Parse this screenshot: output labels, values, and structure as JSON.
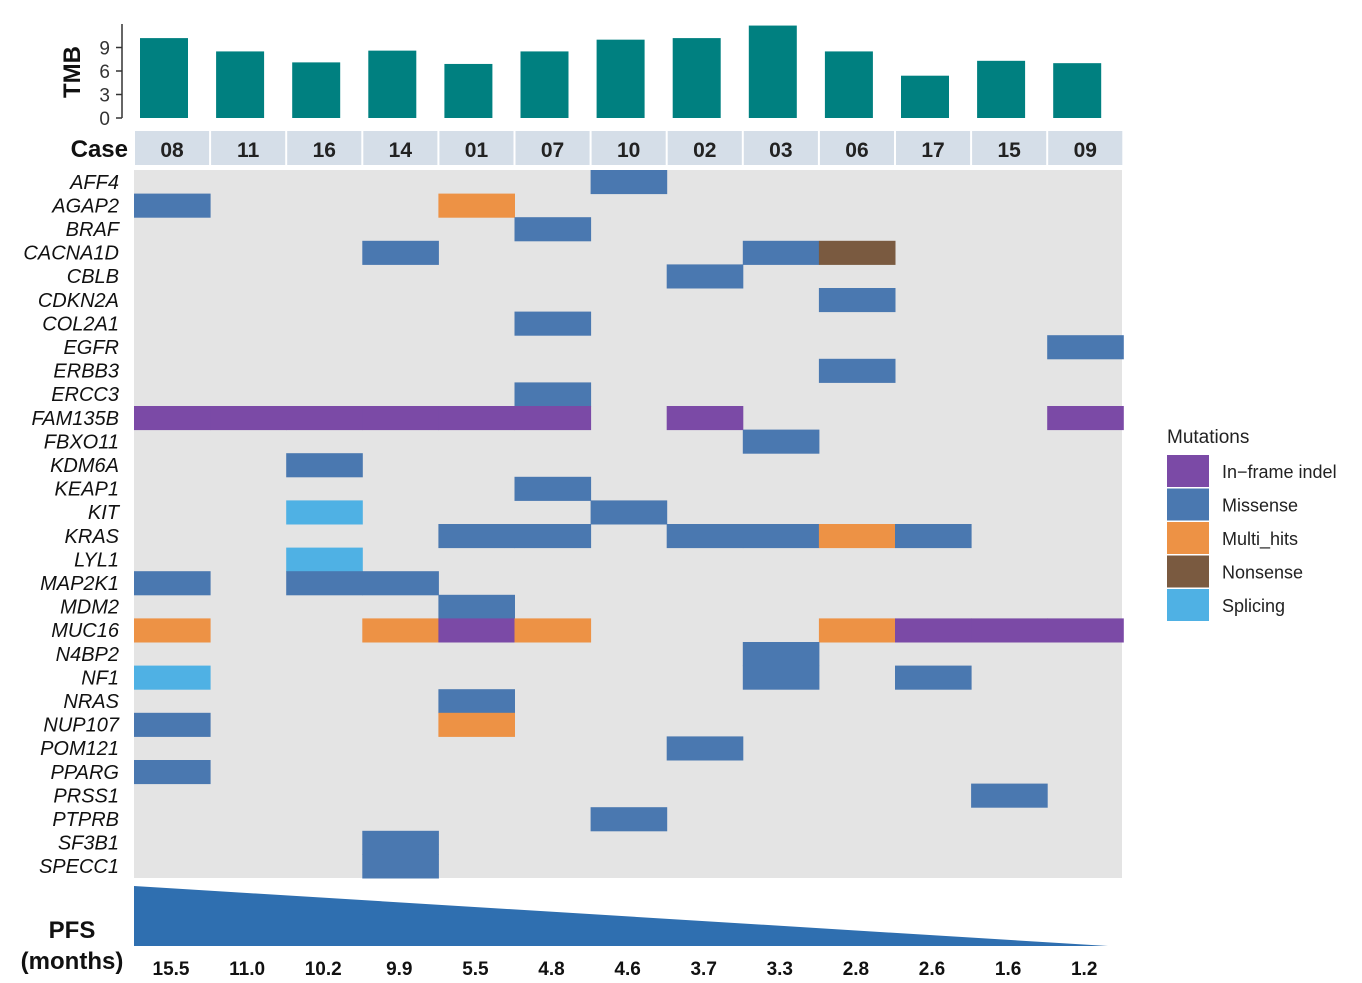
{
  "chart_data": {
    "type": "heatmap",
    "tmb": {
      "ylabel": "TMB",
      "ylim": [
        0,
        12
      ],
      "ticks": [
        0,
        3,
        6,
        9
      ],
      "values": [
        10.2,
        8.5,
        7.1,
        8.6,
        6.9,
        8.5,
        10.0,
        10.2,
        11.8,
        8.5,
        5.4,
        7.3,
        7.0
      ],
      "color": "#008080"
    },
    "case_label": "Case",
    "cases": [
      "08",
      "11",
      "16",
      "14",
      "01",
      "07",
      "10",
      "02",
      "03",
      "06",
      "17",
      "15",
      "09"
    ],
    "genes": [
      "AFF4",
      "AGAP2",
      "BRAF",
      "CACNA1D",
      "CBLB",
      "CDKN2A",
      "COL2A1",
      "EGFR",
      "ERBB3",
      "ERCC3",
      "FAM135B",
      "FBXO11",
      "KDM6A",
      "KEAP1",
      "KIT",
      "KRAS",
      "LYL1",
      "MAP2K1",
      "MDM2",
      "MUC16",
      "N4BP2",
      "NF1",
      "NRAS",
      "NUP107",
      "POM121",
      "PPARG",
      "PRSS1",
      "PTPRB",
      "SF3B1",
      "SPECC1"
    ],
    "mutations": [
      {
        "gene": "AFF4",
        "case": "10",
        "type": "Missense"
      },
      {
        "gene": "AGAP2",
        "case": "08",
        "type": "Missense"
      },
      {
        "gene": "AGAP2",
        "case": "01",
        "type": "Multi_hits"
      },
      {
        "gene": "BRAF",
        "case": "07",
        "type": "Missense"
      },
      {
        "gene": "CACNA1D",
        "case": "14",
        "type": "Missense"
      },
      {
        "gene": "CACNA1D",
        "case": "03",
        "type": "Missense"
      },
      {
        "gene": "CACNA1D",
        "case": "06",
        "type": "Nonsense"
      },
      {
        "gene": "CBLB",
        "case": "02",
        "type": "Missense"
      },
      {
        "gene": "CDKN2A",
        "case": "06",
        "type": "Missense"
      },
      {
        "gene": "COL2A1",
        "case": "07",
        "type": "Missense"
      },
      {
        "gene": "EGFR",
        "case": "09",
        "type": "Missense"
      },
      {
        "gene": "ERBB3",
        "case": "06",
        "type": "Missense"
      },
      {
        "gene": "ERCC3",
        "case": "07",
        "type": "Missense"
      },
      {
        "gene": "FAM135B",
        "case": "08",
        "type": "In-frame indel"
      },
      {
        "gene": "FAM135B",
        "case": "11",
        "type": "In-frame indel"
      },
      {
        "gene": "FAM135B",
        "case": "16",
        "type": "In-frame indel"
      },
      {
        "gene": "FAM135B",
        "case": "14",
        "type": "In-frame indel"
      },
      {
        "gene": "FAM135B",
        "case": "01",
        "type": "In-frame indel"
      },
      {
        "gene": "FAM135B",
        "case": "07",
        "type": "In-frame indel"
      },
      {
        "gene": "FAM135B",
        "case": "02",
        "type": "In-frame indel"
      },
      {
        "gene": "FAM135B",
        "case": "09",
        "type": "In-frame indel"
      },
      {
        "gene": "FBXO11",
        "case": "03",
        "type": "Missense"
      },
      {
        "gene": "KDM6A",
        "case": "16",
        "type": "Missense"
      },
      {
        "gene": "KEAP1",
        "case": "07",
        "type": "Missense"
      },
      {
        "gene": "KIT",
        "case": "16",
        "type": "Splicing"
      },
      {
        "gene": "KIT",
        "case": "10",
        "type": "Missense"
      },
      {
        "gene": "KRAS",
        "case": "01",
        "type": "Missense"
      },
      {
        "gene": "KRAS",
        "case": "07",
        "type": "Missense"
      },
      {
        "gene": "KRAS",
        "case": "02",
        "type": "Missense"
      },
      {
        "gene": "KRAS",
        "case": "03",
        "type": "Missense"
      },
      {
        "gene": "KRAS",
        "case": "06",
        "type": "Multi_hits"
      },
      {
        "gene": "KRAS",
        "case": "17",
        "type": "Missense"
      },
      {
        "gene": "LYL1",
        "case": "16",
        "type": "Splicing"
      },
      {
        "gene": "MAP2K1",
        "case": "08",
        "type": "Missense"
      },
      {
        "gene": "MAP2K1",
        "case": "16",
        "type": "Missense"
      },
      {
        "gene": "MAP2K1",
        "case": "14",
        "type": "Missense"
      },
      {
        "gene": "MDM2",
        "case": "01",
        "type": "Missense"
      },
      {
        "gene": "MUC16",
        "case": "08",
        "type": "Multi_hits"
      },
      {
        "gene": "MUC16",
        "case": "14",
        "type": "Multi_hits"
      },
      {
        "gene": "MUC16",
        "case": "01",
        "type": "In-frame indel"
      },
      {
        "gene": "MUC16",
        "case": "07",
        "type": "Multi_hits"
      },
      {
        "gene": "MUC16",
        "case": "06",
        "type": "Multi_hits"
      },
      {
        "gene": "MUC16",
        "case": "17",
        "type": "In-frame indel"
      },
      {
        "gene": "MUC16",
        "case": "15",
        "type": "In-frame indel"
      },
      {
        "gene": "MUC16",
        "case": "09",
        "type": "In-frame indel"
      },
      {
        "gene": "N4BP2",
        "case": "03",
        "type": "Missense"
      },
      {
        "gene": "NF1",
        "case": "08",
        "type": "Splicing"
      },
      {
        "gene": "NF1",
        "case": "03",
        "type": "Missense"
      },
      {
        "gene": "NF1",
        "case": "17",
        "type": "Missense"
      },
      {
        "gene": "NRAS",
        "case": "01",
        "type": "Missense"
      },
      {
        "gene": "NUP107",
        "case": "08",
        "type": "Missense"
      },
      {
        "gene": "NUP107",
        "case": "01",
        "type": "Multi_hits"
      },
      {
        "gene": "POM121",
        "case": "02",
        "type": "Missense"
      },
      {
        "gene": "PPARG",
        "case": "08",
        "type": "Missense"
      },
      {
        "gene": "PRSS1",
        "case": "15",
        "type": "Missense"
      },
      {
        "gene": "PTPRB",
        "case": "10",
        "type": "Missense"
      },
      {
        "gene": "SF3B1",
        "case": "14",
        "type": "Missense"
      },
      {
        "gene": "SPECC1",
        "case": "14",
        "type": "Missense"
      }
    ],
    "legend": {
      "title": "Mutations",
      "placement": "right",
      "items": [
        {
          "label": "In−frame indel",
          "key": "In-frame indel",
          "color": "#7b4aa6"
        },
        {
          "label": "Missense",
          "key": "Missense",
          "color": "#4a78b0"
        },
        {
          "label": "Multi_hits",
          "key": "Multi_hits",
          "color": "#ed9245"
        },
        {
          "label": "Nonsense",
          "key": "Nonsense",
          "color": "#7a5a40"
        },
        {
          "label": "Splicing",
          "key": "Splicing",
          "color": "#4fb1e4"
        }
      ]
    },
    "background_color": "#e4e4e4",
    "pfs": {
      "label_line1": "PFS",
      "label_line2": "(months)",
      "values": [
        "15.5",
        "11.0",
        "10.2",
        "9.9",
        "5.5",
        "4.8",
        "4.6",
        "3.7",
        "3.3",
        "2.8",
        "2.6",
        "1.6",
        "1.2"
      ],
      "color": "#2f6fb0"
    }
  }
}
